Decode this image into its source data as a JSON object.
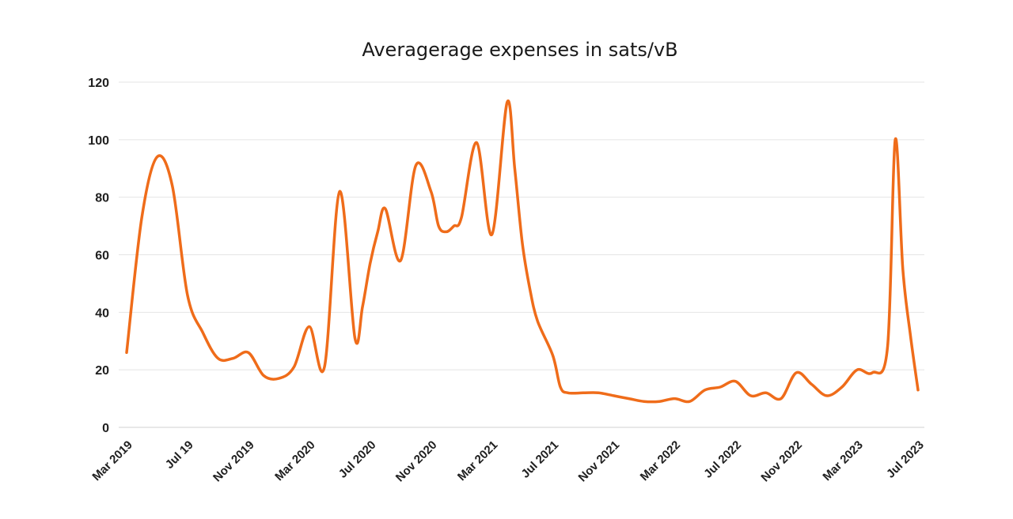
{
  "chart_data": {
    "type": "line",
    "title": "Averagerage expenses in sats/vB",
    "xlabel": "",
    "ylabel": "",
    "ylim": [
      0,
      120
    ],
    "yticks": [
      0,
      20,
      40,
      60,
      80,
      100,
      120
    ],
    "grid": true,
    "legend": "none",
    "x_labels": [
      "Mar 2019",
      "Jul 19",
      "Nov 2019",
      "Mar 2020",
      "Jul 2020",
      "Nov 2020",
      "Mar 2021",
      "Jul 2021",
      "Nov 2021",
      "Mar 2022",
      "Jul 2022",
      "Nov 2022",
      "Mar 2023",
      "Jul 2023"
    ],
    "x_range": [
      0,
      52
    ],
    "series": [
      {
        "name": "Average expenses",
        "color": "#ef6c1a",
        "x": [
          0,
          1,
          2,
          3,
          4,
          5,
          6,
          7,
          8,
          9,
          10,
          11,
          12,
          13,
          14,
          15,
          15.5,
          16,
          16.5,
          17,
          18,
          19,
          20,
          20.5,
          21,
          21.5,
          22,
          23,
          24,
          25,
          25.5,
          26,
          26.5,
          27,
          28,
          28.5,
          29,
          30,
          31,
          32,
          33,
          34,
          35,
          36,
          37,
          38,
          39,
          40,
          41,
          42,
          43,
          44,
          45,
          46,
          47,
          48,
          49,
          50,
          50.5,
          51,
          51.5,
          52
        ],
        "y": [
          26,
          73,
          94,
          84,
          46,
          33,
          24,
          24,
          26,
          18,
          17,
          21,
          35,
          21,
          82,
          31,
          42,
          57,
          68,
          76,
          58,
          91,
          82,
          70,
          68,
          70,
          73,
          99,
          67,
          113,
          90,
          64,
          48,
          37,
          25,
          14,
          12,
          12,
          12,
          11,
          10,
          9,
          9,
          10,
          9,
          13,
          14,
          16,
          11,
          12,
          10,
          19,
          15,
          11,
          14,
          20,
          19,
          28,
          100,
          55,
          32,
          13
        ]
      }
    ]
  }
}
